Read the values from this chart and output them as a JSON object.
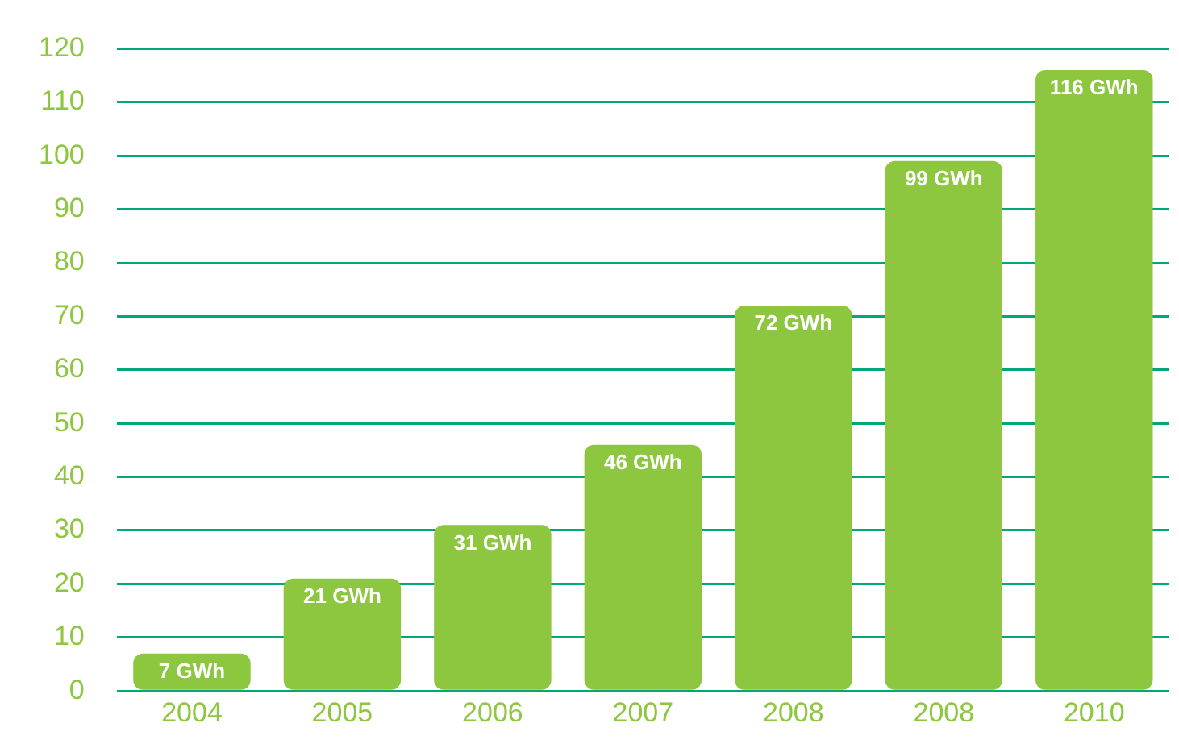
{
  "chart_data": {
    "type": "bar",
    "categories": [
      "2004",
      "2005",
      "2006",
      "2007",
      "2008",
      "2008",
      "2010"
    ],
    "values": [
      7,
      21,
      31,
      46,
      72,
      99,
      116
    ],
    "value_labels": [
      "7 GWh",
      "21 GWh",
      "31 GWh",
      "46 GWh",
      "72 GWh",
      "99 GWh",
      "116 GWh"
    ],
    "color": "#8dc63f",
    "ylim": [
      0,
      120
    ],
    "yticks": [
      0,
      10,
      20,
      30,
      40,
      50,
      60,
      70,
      80,
      90,
      100,
      110,
      120
    ],
    "grid": "y"
  }
}
